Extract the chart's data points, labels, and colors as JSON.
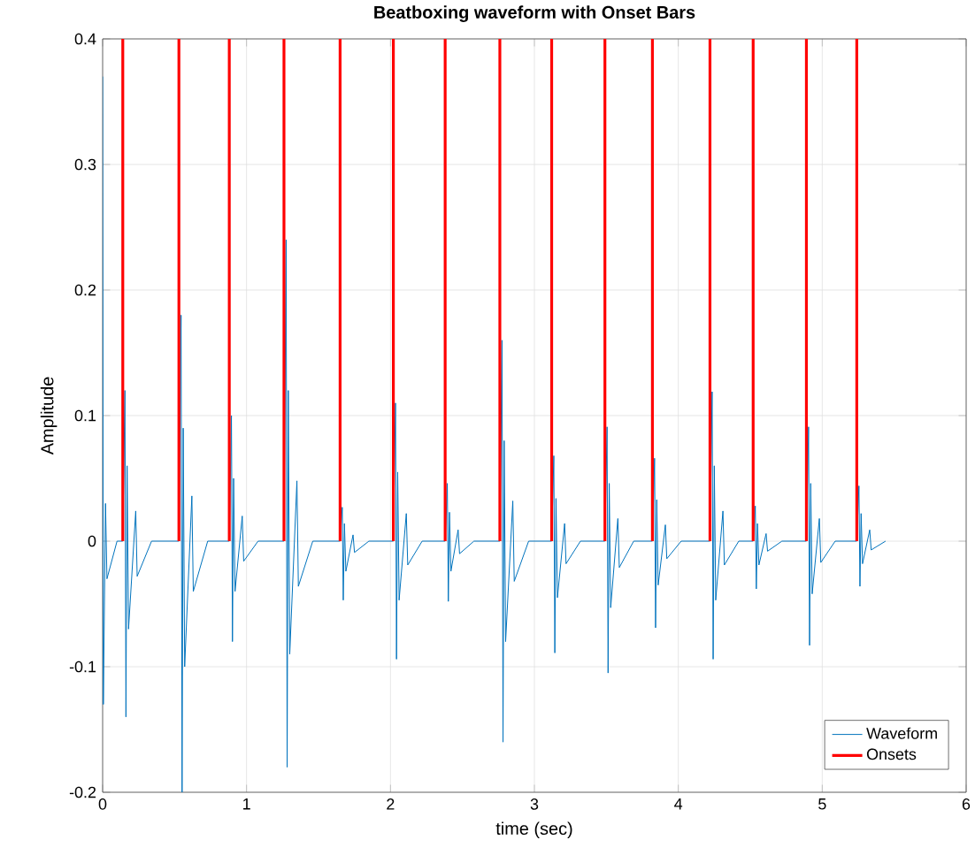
{
  "chart_data": {
    "type": "line",
    "title": "Beatboxing waveform with Onset Bars",
    "xlabel": "time (sec)",
    "ylabel": "Amplitude",
    "xlim": [
      0,
      6
    ],
    "ylim": [
      -0.2,
      0.4
    ],
    "xticks": [
      0,
      1,
      2,
      3,
      4,
      5,
      6
    ],
    "yticks": [
      -0.2,
      -0.1,
      0,
      0.1,
      0.2,
      0.3,
      0.4
    ],
    "grid": true,
    "legend": "bottom right",
    "series": [
      {
        "name": "Waveform",
        "color": "#0072bd",
        "x": [
          0,
          0.005,
          0.02,
          0.03,
          0.1,
          0.14,
          0.155,
          0.162,
          0.17,
          0.18,
          0.23,
          0.24,
          0.34,
          0.53,
          0.545,
          0.552,
          0.56,
          0.57,
          0.62,
          0.63,
          0.73,
          0.88,
          0.895,
          0.902,
          0.91,
          0.92,
          0.97,
          0.98,
          1.08,
          1.26,
          1.275,
          1.282,
          1.29,
          1.3,
          1.35,
          1.36,
          1.46,
          1.65,
          1.665,
          1.672,
          1.68,
          1.69,
          1.74,
          1.75,
          1.85,
          2.02,
          2.035,
          2.042,
          2.05,
          2.06,
          2.11,
          2.12,
          2.22,
          2.38,
          2.395,
          2.402,
          2.41,
          2.42,
          2.47,
          2.48,
          2.58,
          2.76,
          2.775,
          2.782,
          2.79,
          2.8,
          2.85,
          2.86,
          2.96,
          3.12,
          3.135,
          3.142,
          3.15,
          3.16,
          3.21,
          3.22,
          3.32,
          3.49,
          3.505,
          3.512,
          3.52,
          3.53,
          3.58,
          3.59,
          3.69,
          3.82,
          3.835,
          3.842,
          3.85,
          3.86,
          3.91,
          3.92,
          4.02,
          4.22,
          4.235,
          4.242,
          4.25,
          4.26,
          4.31,
          4.32,
          4.42,
          4.52,
          4.535,
          4.542,
          4.55,
          4.56,
          4.61,
          4.62,
          4.72,
          4.89,
          4.905,
          4.912,
          4.92,
          4.93,
          4.98,
          4.99,
          5.09,
          5.24,
          5.255,
          5.262,
          5.27,
          5.28,
          5.33,
          5.34,
          5.44
        ],
        "values": [
          0.37,
          -0.13,
          0.03,
          -0.03,
          0,
          0,
          0.12,
          -0.14,
          0.06,
          -0.07,
          0.024,
          -0.028,
          0,
          0,
          0.18,
          -0.2,
          0.09,
          -0.1,
          0.036,
          -0.04,
          0,
          0,
          0.1,
          -0.08,
          0.05,
          -0.04,
          0.02,
          -0.016,
          0,
          0,
          0.24,
          -0.18,
          0.12,
          -0.09,
          0.048,
          -0.036,
          0,
          0,
          0.027,
          -0.047,
          0.014,
          -0.024,
          0.005,
          -0.009,
          0,
          0,
          0.11,
          -0.094,
          0.055,
          -0.047,
          0.022,
          -0.019,
          0,
          0,
          0.046,
          -0.048,
          0.023,
          -0.024,
          0.009,
          -0.01,
          0,
          0,
          0.16,
          -0.16,
          0.08,
          -0.08,
          0.032,
          -0.032,
          0,
          0,
          0.068,
          -0.089,
          0.034,
          -0.045,
          0.014,
          -0.018,
          0,
          0,
          0.091,
          -0.105,
          0.046,
          -0.053,
          0.018,
          -0.021,
          0,
          0,
          0.066,
          -0.069,
          0.033,
          -0.035,
          0.013,
          -0.014,
          0,
          0,
          0.119,
          -0.094,
          0.06,
          -0.047,
          0.024,
          -0.019,
          0,
          0,
          0.028,
          -0.038,
          0.014,
          -0.019,
          0.006,
          -0.008,
          0,
          0,
          0.091,
          -0.083,
          0.046,
          -0.042,
          0.018,
          -0.017,
          0,
          0,
          0.044,
          -0.036,
          0.022,
          -0.018,
          0.009,
          -0.007,
          0
        ]
      },
      {
        "name": "Onsets",
        "type": "bar",
        "color": "#ff0000",
        "x": [
          0.14,
          0.53,
          0.88,
          1.26,
          1.65,
          2.02,
          2.38,
          2.76,
          3.12,
          3.49,
          3.82,
          4.22,
          4.52,
          4.89,
          5.24
        ],
        "values": [
          0.4,
          0.4,
          0.4,
          0.4,
          0.4,
          0.4,
          0.4,
          0.4,
          0.4,
          0.4,
          0.4,
          0.4,
          0.4,
          0.4,
          0.4
        ]
      }
    ]
  }
}
